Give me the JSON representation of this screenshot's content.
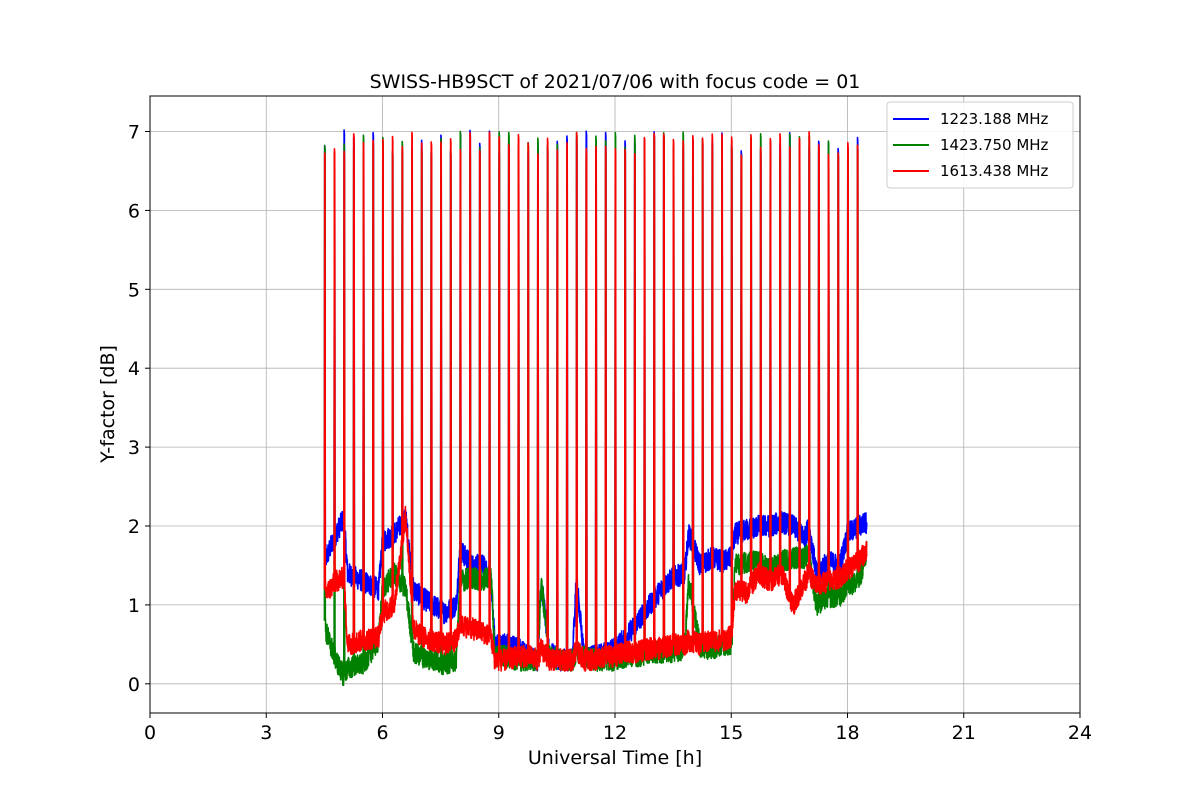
{
  "chart_data": {
    "type": "line",
    "title": "SWISS-HB9SCT of 2021/07/06 with focus code = 01",
    "xlabel": "Universal Time [h]",
    "ylabel": "Y-factor [dB]",
    "xlim": [
      0,
      24
    ],
    "ylim": [
      -0.37,
      7.45
    ],
    "xticks": [
      0,
      3,
      6,
      9,
      12,
      15,
      18,
      21,
      24
    ],
    "yticks": [
      0,
      1,
      2,
      3,
      4,
      5,
      6,
      7
    ],
    "grid": true,
    "legend_position": "top-right",
    "calibration_start_h": 4.5,
    "calibration_interval_h": 0.25,
    "calibration_count": 56,
    "calibration_peak_db": 7.0,
    "series": [
      {
        "name": "1223.188 MHz",
        "color": "#0000ff",
        "baseline": {
          "x": [
            4.5,
            4.55,
            4.8,
            5.0,
            5.1,
            5.5,
            5.9,
            6.0,
            6.3,
            6.6,
            6.8,
            7.0,
            7.3,
            7.6,
            7.9,
            8.0,
            8.3,
            8.6,
            8.8,
            8.9,
            9.2,
            9.5,
            9.8,
            10.0,
            10.1,
            10.3,
            10.6,
            10.9,
            11.0,
            11.2,
            11.5,
            11.8,
            12.0,
            12.3,
            12.6,
            12.9,
            13.2,
            13.5,
            13.8,
            13.9,
            14.2,
            14.5,
            14.8,
            15.0,
            15.1,
            15.4,
            15.7,
            16.0,
            16.3,
            16.6,
            16.9,
            17.0,
            17.2,
            17.5,
            17.8,
            18.0,
            18.3,
            18.5
          ],
          "y": [
            1.7,
            1.6,
            1.9,
            2.1,
            1.4,
            1.3,
            1.2,
            1.8,
            1.9,
            2.1,
            1.2,
            1.1,
            1.0,
            0.9,
            1.0,
            1.7,
            1.5,
            1.5,
            1.3,
            0.5,
            0.5,
            0.45,
            0.35,
            0.3,
            1.3,
            0.4,
            0.3,
            0.3,
            1.35,
            0.35,
            0.35,
            0.4,
            0.45,
            0.6,
            0.8,
            1.0,
            1.2,
            1.35,
            1.4,
            1.9,
            1.5,
            1.6,
            1.55,
            1.6,
            1.9,
            1.95,
            2.0,
            2.0,
            2.05,
            2.0,
            1.85,
            2.0,
            1.4,
            1.55,
            1.5,
            1.9,
            2.0,
            2.05
          ]
        }
      },
      {
        "name": "1423.750 MHz",
        "color": "#008000",
        "baseline": {
          "x": [
            4.5,
            4.55,
            4.8,
            5.0,
            5.1,
            5.5,
            5.9,
            6.0,
            6.3,
            6.6,
            6.8,
            7.0,
            7.3,
            7.6,
            7.9,
            8.0,
            8.3,
            8.6,
            8.8,
            8.9,
            9.2,
            9.5,
            9.8,
            10.0,
            10.1,
            10.3,
            10.6,
            10.9,
            11.0,
            11.2,
            11.5,
            11.8,
            12.0,
            12.3,
            12.6,
            12.9,
            13.2,
            13.5,
            13.8,
            13.9,
            14.2,
            14.5,
            14.8,
            15.0,
            15.1,
            15.4,
            15.7,
            16.0,
            16.3,
            16.6,
            16.9,
            17.0,
            17.2,
            17.5,
            17.8,
            18.0,
            18.3,
            18.5
          ],
          "y": [
            0.8,
            0.65,
            0.3,
            0.1,
            0.2,
            0.25,
            0.55,
            1.2,
            1.4,
            1.2,
            0.4,
            0.35,
            0.3,
            0.25,
            0.3,
            1.3,
            1.35,
            1.3,
            1.4,
            0.35,
            0.35,
            0.3,
            0.3,
            0.3,
            1.3,
            0.35,
            0.3,
            0.3,
            0.4,
            0.35,
            0.3,
            0.3,
            0.3,
            0.35,
            0.35,
            0.4,
            0.4,
            0.4,
            0.45,
            1.3,
            0.45,
            0.45,
            0.5,
            0.5,
            1.5,
            1.55,
            1.55,
            1.45,
            1.55,
            1.6,
            1.6,
            1.65,
            1.0,
            1.1,
            1.1,
            1.25,
            1.3,
            1.7
          ]
        }
      },
      {
        "name": "1613.438 MHz",
        "color": "#ff0000",
        "baseline": {
          "x": [
            4.5,
            4.55,
            4.8,
            5.0,
            5.1,
            5.5,
            5.9,
            6.0,
            6.3,
            6.6,
            6.8,
            7.0,
            7.3,
            7.6,
            7.9,
            8.0,
            8.3,
            8.6,
            8.8,
            8.9,
            9.2,
            9.5,
            9.8,
            10.0,
            10.1,
            10.3,
            10.6,
            10.9,
            11.0,
            11.2,
            11.5,
            11.8,
            12.0,
            12.3,
            12.6,
            12.9,
            13.2,
            13.5,
            13.8,
            13.9,
            14.2,
            14.5,
            14.8,
            15.0,
            15.1,
            15.4,
            15.7,
            16.0,
            16.3,
            16.6,
            16.9,
            17.0,
            17.2,
            17.5,
            17.8,
            18.0,
            18.3,
            18.5
          ],
          "y": [
            1.2,
            1.15,
            1.3,
            1.35,
            0.5,
            0.55,
            0.6,
            0.9,
            1.0,
            2.15,
            0.7,
            0.6,
            0.55,
            0.5,
            0.55,
            0.75,
            0.7,
            0.65,
            0.6,
            0.3,
            0.3,
            0.35,
            0.35,
            0.3,
            0.45,
            0.3,
            0.3,
            0.3,
            0.45,
            0.3,
            0.3,
            0.35,
            0.35,
            0.4,
            0.4,
            0.45,
            0.45,
            0.5,
            0.5,
            0.55,
            0.5,
            0.55,
            0.55,
            0.6,
            1.2,
            1.15,
            1.4,
            1.3,
            1.4,
            1.0,
            1.3,
            1.4,
            1.25,
            1.3,
            1.35,
            1.45,
            1.55,
            1.7
          ]
        }
      }
    ]
  }
}
